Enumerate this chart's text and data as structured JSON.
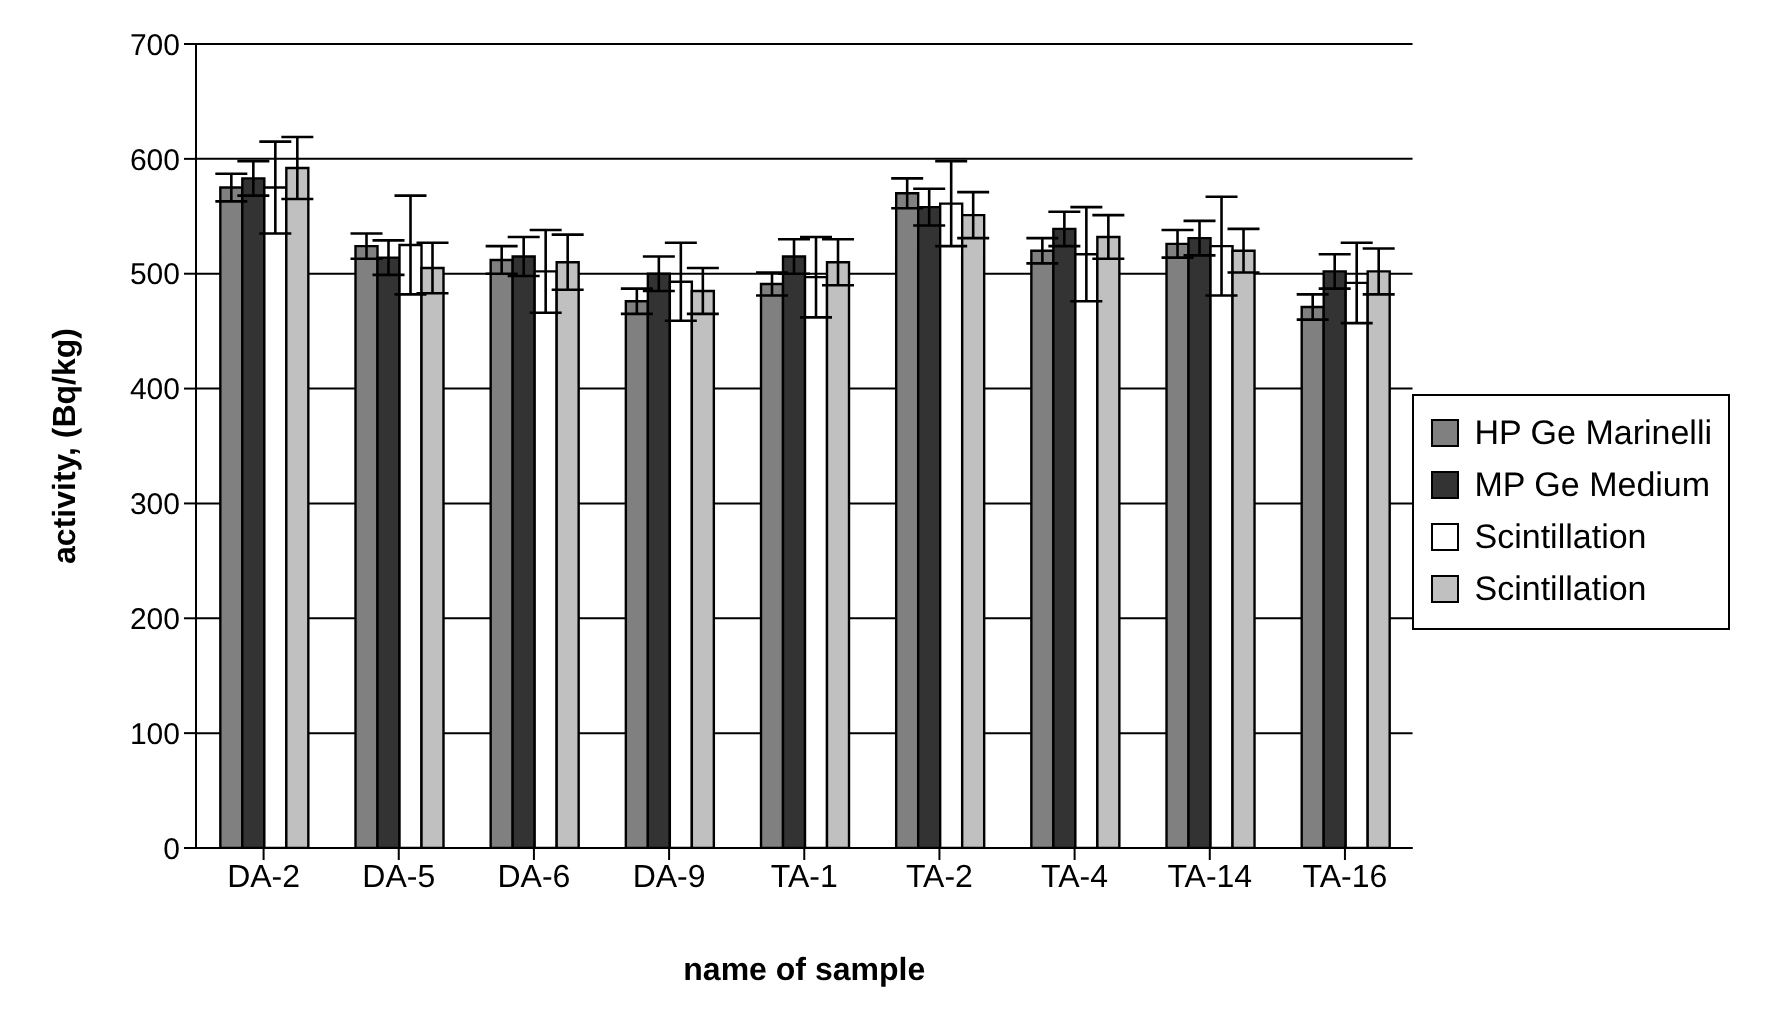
{
  "chart_data": {
    "type": "bar",
    "xlabel": "name of sample",
    "ylabel": "activity, (Bq/kg)",
    "categories": [
      "DA-2",
      "DA-5",
      "DA-6",
      "DA-9",
      "TA-1",
      "TA-2",
      "TA-4",
      "TA-14",
      "TA-16"
    ],
    "series": [
      {
        "name": "HP Ge Marinelli",
        "color": "#808080",
        "values": [
          575,
          524,
          512,
          476,
          491,
          570,
          520,
          526,
          471
        ],
        "errors": [
          12,
          11,
          12,
          11,
          10,
          13,
          11,
          12,
          11
        ]
      },
      {
        "name": "MP Ge Medium",
        "color": "#333333",
        "values": [
          583,
          514,
          515,
          500,
          515,
          558,
          539,
          531,
          502
        ],
        "errors": [
          15,
          15,
          17,
          15,
          15,
          16,
          15,
          15,
          15
        ]
      },
      {
        "name": "Scintillation",
        "color": "#ffffff",
        "values": [
          575,
          525,
          502,
          493,
          497,
          561,
          517,
          524,
          492
        ],
        "errors": [
          40,
          43,
          36,
          34,
          35,
          37,
          41,
          43,
          35
        ]
      },
      {
        "name": "Scintillation",
        "color": "#c0c0c0",
        "values": [
          592,
          505,
          510,
          485,
          510,
          551,
          532,
          520,
          502
        ],
        "errors": [
          27,
          22,
          24,
          20,
          20,
          20,
          19,
          19,
          20
        ]
      }
    ],
    "ylim": [
      0,
      700
    ],
    "yticks": [
      0,
      100,
      200,
      300,
      400,
      500,
      600,
      700
    ],
    "grid": "y",
    "legend": "right"
  }
}
